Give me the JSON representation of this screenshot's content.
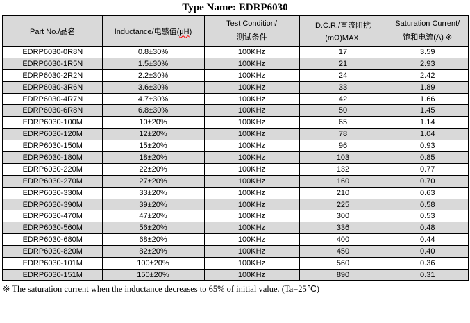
{
  "title": "Type Name: EDRP6030",
  "header": {
    "col1": "Part No./品名",
    "col2_prefix": "Inductance/电感值(",
    "col2_unit": "μH",
    "col2_suffix": ")",
    "col3_line1": "Test Condition/",
    "col3_line2": "测试条件",
    "col4_line1": "D.C.R./直流阻抗",
    "col4_line2": "(mΩ)MAX.",
    "col5_line1": "Saturation Current/",
    "col5_line2": "饱和电流(A) ※"
  },
  "rows": [
    {
      "part_no": "EDRP6030-0R8N",
      "inductance": "0.8±30%",
      "test_condition": "100KHz",
      "dcr_max": "17",
      "saturation_current": "3.59"
    },
    {
      "part_no": "EDRP6030-1R5N",
      "inductance": "1.5±30%",
      "test_condition": "100KHz",
      "dcr_max": "21",
      "saturation_current": "2.93"
    },
    {
      "part_no": "EDRP6030-2R2N",
      "inductance": "2.2±30%",
      "test_condition": "100KHz",
      "dcr_max": "24",
      "saturation_current": "2.42"
    },
    {
      "part_no": "EDRP6030-3R6N",
      "inductance": "3.6±30%",
      "test_condition": "100KHz",
      "dcr_max": "33",
      "saturation_current": "1.89"
    },
    {
      "part_no": "EDRP6030-4R7N",
      "inductance": "4.7±30%",
      "test_condition": "100KHz",
      "dcr_max": "42",
      "saturation_current": "1.66"
    },
    {
      "part_no": "EDRP6030-6R8N",
      "inductance": "6.8±30%",
      "test_condition": "100KHz",
      "dcr_max": "50",
      "saturation_current": "1.45"
    },
    {
      "part_no": "EDRP6030-100M",
      "inductance": "10±20%",
      "test_condition": "100KHz",
      "dcr_max": "65",
      "saturation_current": "1.14"
    },
    {
      "part_no": "EDRP6030-120M",
      "inductance": "12±20%",
      "test_condition": "100KHz",
      "dcr_max": "78",
      "saturation_current": "1.04"
    },
    {
      "part_no": "EDRP6030-150M",
      "inductance": "15±20%",
      "test_condition": "100KHz",
      "dcr_max": "96",
      "saturation_current": "0.93"
    },
    {
      "part_no": "EDRP6030-180M",
      "inductance": "18±20%",
      "test_condition": "100KHz",
      "dcr_max": "103",
      "saturation_current": "0.85"
    },
    {
      "part_no": "EDRP6030-220M",
      "inductance": "22±20%",
      "test_condition": "100KHz",
      "dcr_max": "132",
      "saturation_current": "0.77"
    },
    {
      "part_no": "EDRP6030-270M",
      "inductance": "27±20%",
      "test_condition": "100KHz",
      "dcr_max": "160",
      "saturation_current": "0.70"
    },
    {
      "part_no": "EDRP6030-330M",
      "inductance": "33±20%",
      "test_condition": "100KHz",
      "dcr_max": "210",
      "saturation_current": "0.63"
    },
    {
      "part_no": "EDRP6030-390M",
      "inductance": "39±20%",
      "test_condition": "100KHz",
      "dcr_max": "225",
      "saturation_current": "0.58"
    },
    {
      "part_no": "EDRP6030-470M",
      "inductance": "47±20%",
      "test_condition": "100KHz",
      "dcr_max": "300",
      "saturation_current": "0.53"
    },
    {
      "part_no": "EDRP6030-560M",
      "inductance": "56±20%",
      "test_condition": "100KHz",
      "dcr_max": "336",
      "saturation_current": "0.48"
    },
    {
      "part_no": "EDRP6030-680M",
      "inductance": "68±20%",
      "test_condition": "100KHz",
      "dcr_max": "400",
      "saturation_current": "0.44"
    },
    {
      "part_no": "EDRP6030-820M",
      "inductance": "82±20%",
      "test_condition": "100KHz",
      "dcr_max": "450",
      "saturation_current": "0.40"
    },
    {
      "part_no": "EDRP6030-101M",
      "inductance": "100±20%",
      "test_condition": "100KHz",
      "dcr_max": "560",
      "saturation_current": "0.36"
    },
    {
      "part_no": "EDRP6030-151M",
      "inductance": "150±20%",
      "test_condition": "100KHz",
      "dcr_max": "890",
      "saturation_current": "0.31"
    }
  ],
  "footnote": "※  The saturation current when the inductance decreases to 65% of initial value. (Ta=25℃)",
  "colors": {
    "shaded_row": "#d9d9d9",
    "header_bg": "#d9d9d9",
    "border": "#000000",
    "spellcheck_underline": "#ff0000"
  }
}
